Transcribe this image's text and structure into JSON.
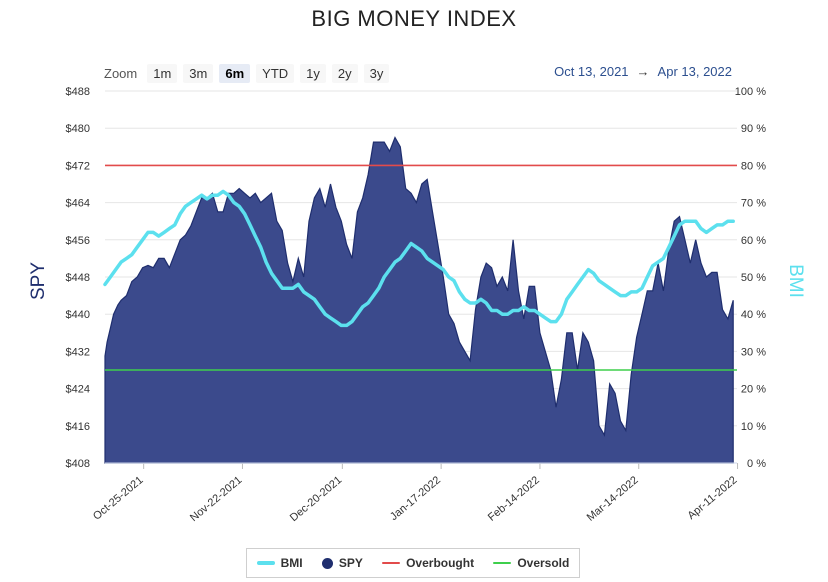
{
  "title": "BIG MONEY INDEX",
  "zoom": {
    "label": "Zoom",
    "buttons": [
      "1m",
      "3m",
      "6m",
      "YTD",
      "1y",
      "2y",
      "3y"
    ],
    "active": "6m"
  },
  "range": {
    "from": "Oct 13, 2021",
    "arrow": "→",
    "to": "Apr 13, 2022"
  },
  "chart_data": {
    "type": "area",
    "title": "BIG MONEY INDEX",
    "x_range": [
      "2021-10-13",
      "2022-04-13"
    ],
    "x_ticks": [
      "Oct-25-2021",
      "Nov-22-2021",
      "Dec-20-2021",
      "Jan-17-2022",
      "Feb-14-2022",
      "Mar-14-2022",
      "Apr-11-2022"
    ],
    "y_left": {
      "label": "SPY",
      "range": [
        408,
        488
      ],
      "ticks": [
        "$408",
        "$416",
        "$424",
        "$432",
        "$440",
        "$448",
        "$456",
        "$464",
        "$472",
        "$480",
        "$488"
      ]
    },
    "y_right": {
      "label": "BMI",
      "range": [
        0,
        100
      ],
      "ticks": [
        "0 %",
        "10 %",
        "20 %",
        "30 %",
        "40 %",
        "50 %",
        "60 %",
        "70 %",
        "80 %",
        "90 %",
        "100 %"
      ]
    },
    "grid": true,
    "legend_position": "bottom",
    "overbought": 80,
    "oversold": 25,
    "spy": [
      [
        0,
        431
      ],
      [
        0.2,
        434
      ],
      [
        0.5,
        437
      ],
      [
        0.8,
        440
      ],
      [
        1.2,
        442
      ],
      [
        1.5,
        443
      ],
      [
        2,
        444
      ],
      [
        2.5,
        447
      ],
      [
        3,
        448
      ],
      [
        3.5,
        450
      ],
      [
        4,
        450.5
      ],
      [
        4.5,
        450
      ],
      [
        5,
        452
      ],
      [
        5.5,
        452
      ],
      [
        6,
        450
      ],
      [
        6.5,
        453
      ],
      [
        7,
        456
      ],
      [
        7.5,
        457
      ],
      [
        8,
        459
      ],
      [
        8.5,
        462
      ],
      [
        9,
        465
      ],
      [
        9.5,
        465
      ],
      [
        10,
        466
      ],
      [
        10.5,
        462
      ],
      [
        11,
        462
      ],
      [
        11.5,
        466
      ],
      [
        12,
        466
      ],
      [
        12.5,
        467
      ],
      [
        13,
        466
      ],
      [
        13.5,
        465
      ],
      [
        14,
        466
      ],
      [
        14.5,
        464
      ],
      [
        15,
        465
      ],
      [
        15.5,
        466
      ],
      [
        16,
        460
      ],
      [
        16.5,
        458
      ],
      [
        17,
        451
      ],
      [
        17.5,
        447
      ],
      [
        18,
        452
      ],
      [
        18.5,
        448
      ],
      [
        19,
        460
      ],
      [
        19.5,
        465
      ],
      [
        20,
        467
      ],
      [
        20.5,
        463
      ],
      [
        21,
        468
      ],
      [
        21.5,
        463
      ],
      [
        22,
        460
      ],
      [
        22.5,
        455
      ],
      [
        23,
        452
      ],
      [
        23.5,
        462
      ],
      [
        24,
        465
      ],
      [
        24.5,
        470
      ],
      [
        25,
        477
      ],
      [
        25.5,
        477
      ],
      [
        26,
        477
      ],
      [
        26.5,
        475
      ],
      [
        27,
        478
      ],
      [
        27.5,
        476
      ],
      [
        28,
        467
      ],
      [
        28.5,
        466
      ],
      [
        29,
        464
      ],
      [
        29.5,
        468
      ],
      [
        30,
        469
      ],
      [
        30.5,
        462
      ],
      [
        31,
        455
      ],
      [
        31.5,
        448
      ],
      [
        32,
        440
      ],
      [
        32.5,
        438
      ],
      [
        33,
        434
      ],
      [
        33.5,
        432
      ],
      [
        34,
        430
      ],
      [
        34.5,
        441
      ],
      [
        35,
        448
      ],
      [
        35.5,
        451
      ],
      [
        36,
        450
      ],
      [
        36.5,
        446
      ],
      [
        37,
        448
      ],
      [
        37.5,
        445
      ],
      [
        38,
        456
      ],
      [
        38.5,
        445
      ],
      [
        39,
        439
      ],
      [
        39.5,
        446
      ],
      [
        40,
        446
      ],
      [
        40.5,
        436
      ],
      [
        41,
        432
      ],
      [
        41.5,
        428
      ],
      [
        42,
        420
      ],
      [
        42.5,
        426
      ],
      [
        43,
        436
      ],
      [
        43.5,
        436
      ],
      [
        44,
        428
      ],
      [
        44.5,
        436
      ],
      [
        45,
        434
      ],
      [
        45.5,
        430
      ],
      [
        46,
        416
      ],
      [
        46.5,
        414
      ],
      [
        47,
        425
      ],
      [
        47.5,
        423
      ],
      [
        48,
        417
      ],
      [
        48.5,
        415
      ],
      [
        49,
        427
      ],
      [
        49.5,
        435
      ],
      [
        50,
        440
      ],
      [
        50.5,
        445
      ],
      [
        51,
        445
      ],
      [
        51.5,
        451
      ],
      [
        52,
        445
      ],
      [
        52.5,
        454
      ],
      [
        53,
        460
      ],
      [
        53.5,
        461
      ],
      [
        54,
        456
      ],
      [
        54.5,
        451
      ],
      [
        55,
        456
      ],
      [
        55.5,
        451
      ],
      [
        56,
        448
      ],
      [
        56.5,
        449
      ],
      [
        57,
        449
      ],
      [
        57.5,
        441
      ],
      [
        58,
        439
      ],
      [
        58.5,
        443
      ]
    ],
    "bmi": [
      [
        0,
        48
      ],
      [
        0.5,
        50
      ],
      [
        1,
        52
      ],
      [
        1.5,
        54
      ],
      [
        2,
        55
      ],
      [
        2.5,
        56
      ],
      [
        3,
        58
      ],
      [
        3.5,
        60
      ],
      [
        4,
        62
      ],
      [
        4.5,
        62
      ],
      [
        5,
        61
      ],
      [
        5.5,
        62
      ],
      [
        6,
        63
      ],
      [
        6.5,
        64
      ],
      [
        7,
        67
      ],
      [
        7.5,
        69
      ],
      [
        8,
        70
      ],
      [
        8.5,
        71
      ],
      [
        9,
        72
      ],
      [
        9.5,
        71
      ],
      [
        10,
        72
      ],
      [
        10.5,
        72
      ],
      [
        11,
        73
      ],
      [
        11.5,
        72
      ],
      [
        12,
        70
      ],
      [
        12.5,
        69
      ],
      [
        13,
        67
      ],
      [
        13.5,
        64
      ],
      [
        14,
        61
      ],
      [
        14.5,
        58
      ],
      [
        15,
        54
      ],
      [
        15.5,
        51
      ],
      [
        16,
        49
      ],
      [
        16.5,
        47
      ],
      [
        17,
        47
      ],
      [
        17.5,
        47
      ],
      [
        18,
        48
      ],
      [
        18.5,
        46
      ],
      [
        19,
        45
      ],
      [
        19.5,
        44
      ],
      [
        20,
        42
      ],
      [
        20.5,
        40
      ],
      [
        21,
        39
      ],
      [
        21.5,
        38
      ],
      [
        22,
        37
      ],
      [
        22.5,
        37
      ],
      [
        23,
        38
      ],
      [
        23.5,
        40
      ],
      [
        24,
        42
      ],
      [
        24.5,
        43
      ],
      [
        25,
        45
      ],
      [
        25.5,
        47
      ],
      [
        26,
        50
      ],
      [
        26.5,
        52
      ],
      [
        27,
        54
      ],
      [
        27.5,
        55
      ],
      [
        28,
        57
      ],
      [
        28.5,
        59
      ],
      [
        29,
        58
      ],
      [
        29.5,
        57
      ],
      [
        30,
        55
      ],
      [
        30.5,
        54
      ],
      [
        31,
        53
      ],
      [
        31.5,
        52
      ],
      [
        32,
        50
      ],
      [
        32.5,
        49
      ],
      [
        33,
        46
      ],
      [
        33.5,
        44
      ],
      [
        34,
        43
      ],
      [
        34.5,
        43
      ],
      [
        35,
        44
      ],
      [
        35.5,
        43
      ],
      [
        36,
        41
      ],
      [
        36.5,
        41
      ],
      [
        37,
        40
      ],
      [
        37.5,
        40
      ],
      [
        38,
        41
      ],
      [
        38.5,
        41
      ],
      [
        39,
        42
      ],
      [
        39.5,
        41
      ],
      [
        40,
        41
      ],
      [
        40.5,
        40
      ],
      [
        41,
        39
      ],
      [
        41.5,
        38
      ],
      [
        42,
        38
      ],
      [
        42.5,
        40
      ],
      [
        43,
        44
      ],
      [
        43.5,
        46
      ],
      [
        44,
        48
      ],
      [
        44.5,
        50
      ],
      [
        45,
        52
      ],
      [
        45.5,
        51
      ],
      [
        46,
        49
      ],
      [
        46.5,
        48
      ],
      [
        47,
        47
      ],
      [
        47.5,
        46
      ],
      [
        48,
        45
      ],
      [
        48.5,
        45
      ],
      [
        49,
        46
      ],
      [
        49.5,
        46
      ],
      [
        50,
        47
      ],
      [
        50.5,
        50
      ],
      [
        51,
        53
      ],
      [
        51.5,
        54
      ],
      [
        52,
        55
      ],
      [
        52.5,
        58
      ],
      [
        53,
        61
      ],
      [
        53.5,
        64
      ],
      [
        54,
        65
      ],
      [
        54.5,
        65
      ],
      [
        55,
        65
      ],
      [
        55.5,
        63
      ],
      [
        56,
        62
      ],
      [
        56.5,
        63
      ],
      [
        57,
        64
      ],
      [
        57.5,
        64
      ],
      [
        58,
        65
      ],
      [
        58.5,
        65
      ]
    ],
    "x_tick_positions": [
      3.6,
      12.8,
      22.1,
      31.3,
      40.5,
      49.7,
      58.9
    ],
    "x_max": 58.5
  },
  "legend": [
    {
      "label": "BMI",
      "color": "#5ce0ee",
      "kind": "line"
    },
    {
      "label": "SPY",
      "color": "#1f2e6e",
      "kind": "dot"
    },
    {
      "label": "Overbought",
      "color": "#e24b4b",
      "kind": "thinline"
    },
    {
      "label": "Oversold",
      "color": "#3ecf4c",
      "kind": "thinline"
    }
  ]
}
